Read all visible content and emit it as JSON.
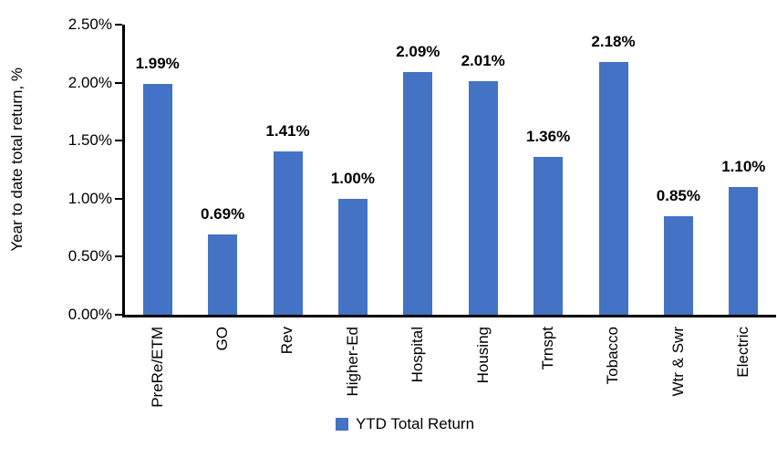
{
  "chart_data": {
    "type": "bar",
    "title": "",
    "categories": [
      "PreRe/ETM",
      "GO",
      "Rev",
      "Higher-Ed",
      "Hospital",
      "Housing",
      "Trnspt",
      "Tobacco",
      "Wtr & Swr",
      "Electric"
    ],
    "values": [
      1.99,
      0.69,
      1.41,
      1.0,
      2.09,
      2.01,
      1.36,
      2.18,
      0.85,
      1.1
    ],
    "value_labels": [
      "1.99%",
      "0.69%",
      "1.41%",
      "1.00%",
      "2.09%",
      "2.01%",
      "1.36%",
      "2.18%",
      "0.85%",
      "1.10%"
    ],
    "series_name": "YTD Total Return",
    "xlabel": "",
    "ylabel": "Year to date total return, %",
    "y_ticks": [
      "0.00%",
      "0.50%",
      "1.00%",
      "1.50%",
      "2.00%",
      "2.50%"
    ],
    "ylim": [
      0,
      2.5
    ],
    "grid": false,
    "legend_position": "bottom",
    "bar_color": "#4472C4",
    "axis_color": "#000000",
    "text_color": "#000000"
  }
}
